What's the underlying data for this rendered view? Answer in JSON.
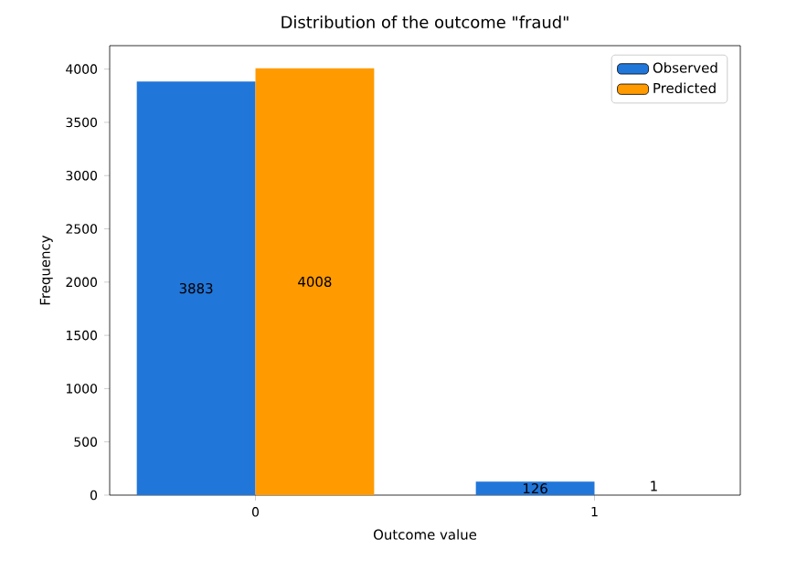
{
  "chart_data": {
    "type": "bar",
    "title": "Distribution of the outcome \"fraud\"",
    "xlabel": "Outcome value",
    "ylabel": "Frequency",
    "categories": [
      "0",
      "1"
    ],
    "series": [
      {
        "name": "Observed",
        "color": "#2176d9",
        "values": [
          3883,
          126
        ]
      },
      {
        "name": "Predicted",
        "color": "#ff9a00",
        "values": [
          4008,
          1
        ]
      }
    ],
    "ylim": [
      0,
      4220
    ],
    "yticks": [
      0,
      500,
      1000,
      1500,
      2000,
      2500,
      3000,
      3500,
      4000
    ],
    "data_labels": true,
    "legend": "top right"
  }
}
